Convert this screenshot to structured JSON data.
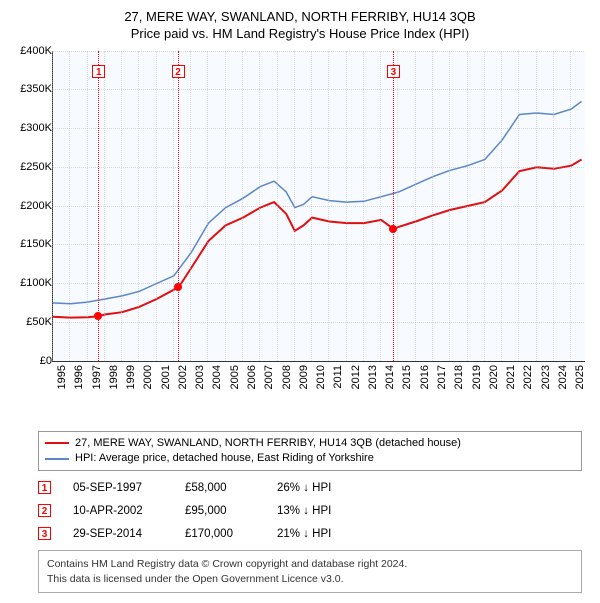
{
  "title": "27, MERE WAY, SWANLAND, NORTH FERRIBY, HU14 3QB",
  "subtitle": "Price paid vs. HM Land Registry's House Price Index (HPI)",
  "chart": {
    "type": "line",
    "background_color": "#f7faff",
    "grid_color": "#bbbbbb",
    "y": {
      "min": 0,
      "max": 400000,
      "step": 50000,
      "ticks": [
        "£0",
        "£50K",
        "£100K",
        "£150K",
        "£200K",
        "£250K",
        "£300K",
        "£350K",
        "£400K"
      ]
    },
    "x": {
      "min": 1995,
      "max": 2025.8,
      "labels": [
        "1995",
        "1996",
        "1997",
        "1998",
        "1999",
        "2000",
        "2001",
        "2002",
        "2003",
        "2004",
        "2005",
        "2006",
        "2007",
        "2008",
        "2009",
        "2010",
        "2011",
        "2012",
        "2013",
        "2014",
        "2015",
        "2016",
        "2017",
        "2018",
        "2019",
        "2020",
        "2021",
        "2022",
        "2023",
        "2024",
        "2025"
      ]
    },
    "events": [
      {
        "n": 1,
        "year": 1997.68,
        "date": "05-SEP-1997",
        "price_text": "£58,000",
        "price": 58000,
        "diff": "26% ↓ HPI"
      },
      {
        "n": 2,
        "year": 2002.27,
        "date": "10-APR-2002",
        "price_text": "£95,000",
        "price": 95000,
        "diff": "13% ↓ HPI"
      },
      {
        "n": 3,
        "year": 2014.74,
        "date": "29-SEP-2014",
        "price_text": "£170,000",
        "price": 170000,
        "diff": "21% ↓ HPI"
      }
    ],
    "series": {
      "subject": {
        "label": "27, MERE WAY, SWANLAND, NORTH FERRIBY, HU14 3QB (detached house)",
        "color": "#e01010",
        "line_width": 2,
        "points": [
          [
            1995.0,
            57000
          ],
          [
            1996.0,
            56000
          ],
          [
            1997.0,
            56500
          ],
          [
            1997.68,
            58000
          ],
          [
            1998.0,
            60000
          ],
          [
            1999.0,
            63000
          ],
          [
            2000.0,
            70000
          ],
          [
            2001.0,
            80000
          ],
          [
            2002.0,
            92000
          ],
          [
            2002.27,
            95000
          ],
          [
            2003.0,
            120000
          ],
          [
            2004.0,
            155000
          ],
          [
            2005.0,
            175000
          ],
          [
            2006.0,
            185000
          ],
          [
            2007.0,
            198000
          ],
          [
            2007.8,
            205000
          ],
          [
            2008.5,
            190000
          ],
          [
            2009.0,
            168000
          ],
          [
            2009.5,
            175000
          ],
          [
            2010.0,
            185000
          ],
          [
            2011.0,
            180000
          ],
          [
            2012.0,
            178000
          ],
          [
            2013.0,
            178000
          ],
          [
            2014.0,
            182000
          ],
          [
            2014.74,
            170000
          ],
          [
            2015.0,
            173000
          ],
          [
            2016.0,
            180000
          ],
          [
            2017.0,
            188000
          ],
          [
            2018.0,
            195000
          ],
          [
            2019.0,
            200000
          ],
          [
            2020.0,
            205000
          ],
          [
            2021.0,
            220000
          ],
          [
            2022.0,
            245000
          ],
          [
            2023.0,
            250000
          ],
          [
            2024.0,
            248000
          ],
          [
            2025.0,
            252000
          ],
          [
            2025.6,
            260000
          ]
        ]
      },
      "hpi": {
        "label": "HPI: Average price, detached house, East Riding of Yorkshire",
        "color": "#5b86c9",
        "line_width": 1.5,
        "points": [
          [
            1995.0,
            75000
          ],
          [
            1996.0,
            74000
          ],
          [
            1997.0,
            76000
          ],
          [
            1998.0,
            80000
          ],
          [
            1999.0,
            84000
          ],
          [
            2000.0,
            90000
          ],
          [
            2001.0,
            100000
          ],
          [
            2002.0,
            110000
          ],
          [
            2003.0,
            140000
          ],
          [
            2004.0,
            178000
          ],
          [
            2005.0,
            198000
          ],
          [
            2006.0,
            210000
          ],
          [
            2007.0,
            225000
          ],
          [
            2007.8,
            232000
          ],
          [
            2008.5,
            218000
          ],
          [
            2009.0,
            198000
          ],
          [
            2009.5,
            202000
          ],
          [
            2010.0,
            212000
          ],
          [
            2011.0,
            207000
          ],
          [
            2012.0,
            205000
          ],
          [
            2013.0,
            206000
          ],
          [
            2014.0,
            212000
          ],
          [
            2015.0,
            218000
          ],
          [
            2016.0,
            228000
          ],
          [
            2017.0,
            238000
          ],
          [
            2018.0,
            246000
          ],
          [
            2019.0,
            252000
          ],
          [
            2020.0,
            260000
          ],
          [
            2021.0,
            285000
          ],
          [
            2022.0,
            318000
          ],
          [
            2023.0,
            320000
          ],
          [
            2024.0,
            318000
          ],
          [
            2025.0,
            325000
          ],
          [
            2025.6,
            335000
          ]
        ]
      }
    }
  },
  "credits": {
    "line1": "Contains HM Land Registry data © Crown copyright and database right 2024.",
    "line2": "This data is licensed under the Open Government Licence v3.0."
  }
}
